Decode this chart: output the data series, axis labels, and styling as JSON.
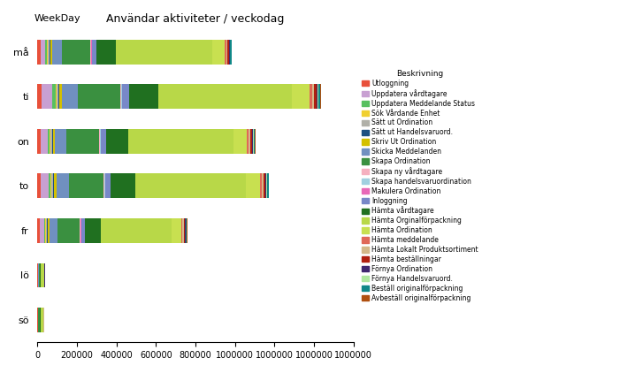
{
  "title": "Användar aktiviteter / veckodag",
  "ylabel": "WeekDay",
  "legend_title": "Beskrivning",
  "categories": [
    "må",
    "ti",
    "on",
    "to",
    "fr",
    "lö",
    "sö"
  ],
  "series": [
    {
      "label": "Utloggning",
      "color": "#E8503A",
      "values": [
        14000,
        20000,
        15000,
        16000,
        11000,
        600,
        550
      ]
    },
    {
      "label": "Uppdatera vårdtagare",
      "color": "#C8A0D2",
      "values": [
        25000,
        55000,
        35000,
        38000,
        22000,
        800,
        700
      ]
    },
    {
      "label": "Uppdatera Meddelande Status",
      "color": "#58C060",
      "values": [
        10000,
        15000,
        11000,
        12000,
        7000,
        400,
        350
      ]
    },
    {
      "label": "Sök Vårdande Enhet",
      "color": "#F0D030",
      "values": [
        4000,
        5500,
        4200,
        4600,
        3000,
        150,
        130
      ]
    },
    {
      "label": "Sätt ut Ordination",
      "color": "#B0B0A8",
      "values": [
        6000,
        9000,
        7000,
        7500,
        5000,
        250,
        220
      ]
    },
    {
      "label": "Sätt ut Handelsvaruord.",
      "color": "#1E5080",
      "values": [
        4000,
        6000,
        4500,
        5000,
        3500,
        180,
        160
      ]
    },
    {
      "label": "Skriv Ut Ordination",
      "color": "#D4C000",
      "values": [
        10000,
        14000,
        11000,
        12000,
        8000,
        400,
        360
      ]
    },
    {
      "label": "Skicka Meddelanden",
      "color": "#7090C0",
      "values": [
        50000,
        80000,
        60000,
        65000,
        40000,
        2000,
        1800
      ]
    },
    {
      "label": "Skapa Ordination",
      "color": "#3A9040",
      "values": [
        145000,
        215000,
        165000,
        175000,
        115000,
        5500,
        5000
      ]
    },
    {
      "label": "Skapa ny vårdtagare",
      "color": "#F5B0C0",
      "values": [
        2000,
        3000,
        2500,
        2700,
        1800,
        100,
        90
      ]
    },
    {
      "label": "Skapa handelsvaruordination",
      "color": "#A0D0E0",
      "values": [
        3000,
        5000,
        4000,
        4500,
        3000,
        150,
        130
      ]
    },
    {
      "label": "Makulera Ordination",
      "color": "#E868B8",
      "values": [
        1500,
        2200,
        1800,
        2000,
        1300,
        80,
        70
      ]
    },
    {
      "label": "Inloggning",
      "color": "#7888C8",
      "values": [
        22000,
        32000,
        25000,
        27000,
        18000,
        900,
        800
      ]
    },
    {
      "label": "Hämta vårdtagare",
      "color": "#207020",
      "values": [
        100000,
        148000,
        115000,
        122000,
        80000,
        4000,
        3500
      ]
    },
    {
      "label": "Hämta Orginalförpackning",
      "color": "#B8D848",
      "values": [
        490000,
        680000,
        530000,
        560000,
        360000,
        17000,
        15000
      ]
    },
    {
      "label": "Hämta Ordination",
      "color": "#C8E050",
      "values": [
        60000,
        88000,
        68000,
        72000,
        48000,
        2400,
        2100
      ]
    },
    {
      "label": "Hämta meddelande",
      "color": "#E06858",
      "values": [
        9000,
        13000,
        10000,
        11000,
        7000,
        350,
        310
      ]
    },
    {
      "label": "Hämta Lokalt Produktsortiment",
      "color": "#D4B888",
      "values": [
        7000,
        11000,
        8500,
        9200,
        6000,
        300,
        270
      ]
    },
    {
      "label": "Hämta beställningar",
      "color": "#B02010",
      "values": [
        7000,
        11000,
        8500,
        9000,
        6000,
        300,
        270
      ]
    },
    {
      "label": "Förnya Ordination",
      "color": "#402870",
      "values": [
        4000,
        6000,
        4800,
        5200,
        3400,
        170,
        150
      ]
    },
    {
      "label": "Förnya Handelsvaruord.",
      "color": "#B0E8A0",
      "values": [
        2500,
        3800,
        3000,
        3200,
        2100,
        110,
        95
      ]
    },
    {
      "label": "Beställ originalförpackning",
      "color": "#108888",
      "values": [
        5000,
        8000,
        6200,
        6600,
        4400,
        220,
        195
      ]
    },
    {
      "label": "Avbeställ originalförpackning",
      "color": "#B05010",
      "values": [
        2000,
        3000,
        2400,
        2600,
        1700,
        90,
        80
      ]
    }
  ],
  "xlim": [
    0,
    1600000
  ],
  "xticks": [
    0,
    200000,
    400000,
    600000,
    800000,
    1000000,
    1200000,
    1400000,
    1600000
  ],
  "bar_height": 0.55,
  "figsize": [
    7.18,
    4.22
  ],
  "dpi": 100
}
